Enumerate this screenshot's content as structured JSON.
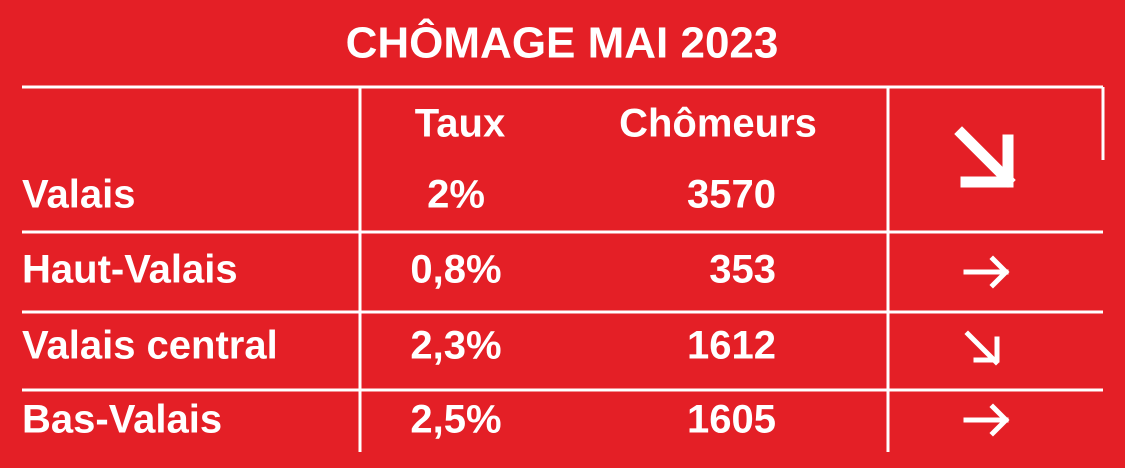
{
  "header": {
    "title": "CHÔMAGE MAI 2023"
  },
  "table": {
    "columns": [
      "Taux",
      "Chômeurs"
    ],
    "rows": [
      [
        "Valais",
        "2%",
        "3570"
      ],
      [
        "Haut-Valais",
        "0,8%",
        "353"
      ],
      [
        "Valais central",
        "2,3%",
        "1612"
      ],
      [
        "Bas-Valais",
        "2,5%",
        "1605"
      ]
    ]
  }
}
